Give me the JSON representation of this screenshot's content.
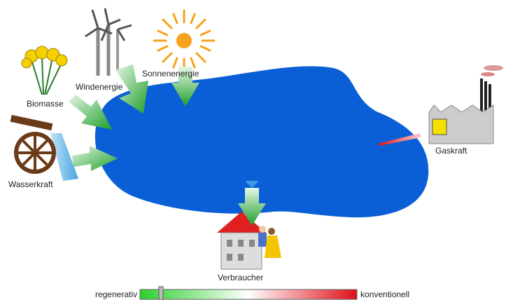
{
  "nodes": [
    {
      "label": "Biomasse"
    },
    {
      "label": "Windenergie"
    },
    {
      "label": "Sonnenenergie"
    },
    {
      "label": "Wasserkraft"
    },
    {
      "label": "Gaskraft"
    },
    {
      "label": "Verbraucher"
    }
  ],
  "scale": {
    "left": "regenerativ",
    "right": "konventionell"
  }
}
